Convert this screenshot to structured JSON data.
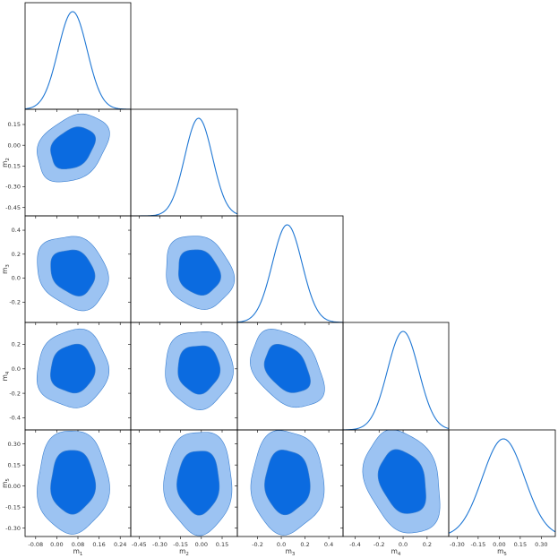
{
  "chart_data": {
    "type": "corner",
    "parameters": [
      {
        "label": "m",
        "sub": "1",
        "mean": 0.06,
        "sd": 0.055,
        "range": [
          -0.12,
          0.28
        ],
        "ticks": [
          -0.08,
          0.0,
          0.08,
          0.16,
          0.24
        ],
        "tick_labels": [
          "-0.08",
          "0.00",
          "0.08",
          "0.16",
          "0.24"
        ]
      },
      {
        "label": "m",
        "sub": "2",
        "mean": -0.02,
        "sd": 0.1,
        "range": [
          -0.51,
          0.26
        ],
        "ticks": [
          -0.45,
          -0.3,
          -0.15,
          0.0,
          0.15
        ],
        "tick_labels": [
          "-0.45",
          "-0.30",
          "-0.15",
          "0.00",
          "0.15"
        ]
      },
      {
        "label": "m",
        "sub": "3",
        "mean": 0.05,
        "sd": 0.125,
        "range": [
          -0.37,
          0.52
        ],
        "ticks": [
          -0.2,
          0.0,
          0.2,
          0.4
        ],
        "tick_labels": [
          "-0.2",
          "0.0",
          "0.2",
          "0.4"
        ]
      },
      {
        "label": "m",
        "sub": "4",
        "mean": 0.0,
        "sd": 0.13,
        "range": [
          -0.5,
          0.38
        ],
        "ticks": [
          -0.4,
          -0.2,
          0.0,
          0.2
        ],
        "tick_labels": [
          "-0.4",
          "-0.2",
          "0.0",
          "0.2"
        ]
      },
      {
        "label": "m",
        "sub": "5",
        "mean": 0.03,
        "sd": 0.15,
        "range": [
          -0.36,
          0.4
        ],
        "ticks": [
          -0.3,
          -0.15,
          0.0,
          0.15,
          0.3
        ],
        "tick_labels": [
          "-0.30",
          "-0.15",
          "0.00",
          "0.15",
          "0.30"
        ]
      }
    ],
    "row_axis_ticks": {
      "m2": {
        "ticks": [
          -0.45,
          -0.3,
          -0.15,
          0.0,
          0.15
        ],
        "tick_labels": [
          "-0.45",
          "-0.30",
          "-0.15",
          "0.00",
          "0.15"
        ]
      },
      "m3": {
        "ticks": [
          -0.2,
          0.0,
          0.2,
          0.4
        ],
        "tick_labels": [
          "-0.2",
          "0.0",
          "0.2",
          "0.4"
        ]
      },
      "m4": {
        "ticks": [
          -0.4,
          -0.2,
          0.0,
          0.2
        ],
        "tick_labels": [
          "-0.4",
          "-0.2",
          "0.0",
          "0.2"
        ]
      },
      "m5": {
        "ticks": [
          -0.3,
          -0.15,
          0.0,
          0.15,
          0.3
        ],
        "tick_labels": [
          "-0.30",
          "-0.15",
          "0.00",
          "0.15",
          "0.30"
        ]
      }
    },
    "correlations": {
      "1-2": 0.3,
      "1-3": -0.2,
      "1-4": 0.05,
      "1-5": 0.0,
      "2-3": -0.15,
      "2-4": 0.0,
      "2-5": 0.0,
      "3-4": -0.35,
      "3-5": 0.0,
      "4-5": -0.25
    },
    "contour_levels": [
      "68%",
      "95%"
    ],
    "colors": {
      "line": "#1f77d4",
      "inner_fill": "#0b6be0",
      "outer_fill": "#9cc3f2",
      "contour_edge": "#3a7fd0"
    }
  }
}
